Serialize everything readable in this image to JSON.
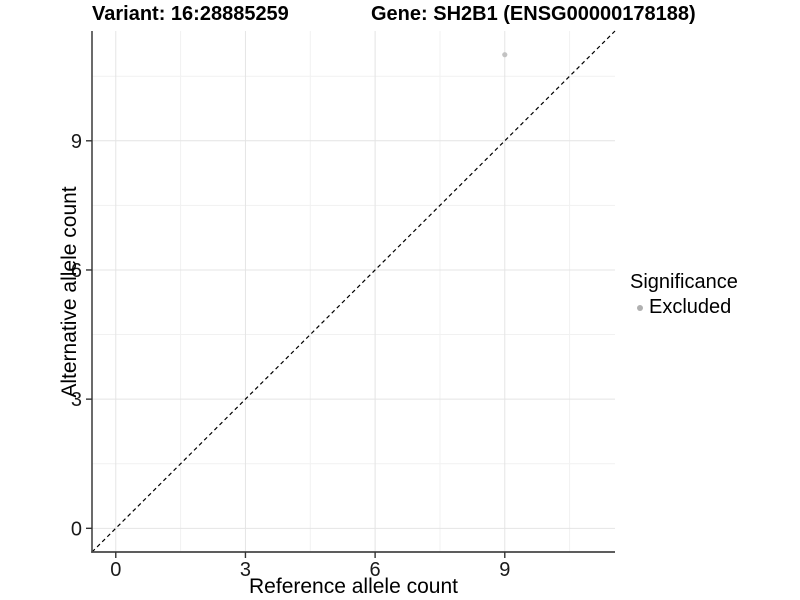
{
  "header": {
    "title_left": "Variant: 16:28885259",
    "title_right": "Gene: SH2B1 (ENSG00000178188)"
  },
  "chart_data": {
    "type": "scatter",
    "title_left": "Variant: 16:28885259",
    "title_right": "Gene: SH2B1 (ENSG00000178188)",
    "xlabel": "Reference allele count",
    "ylabel": "Alternative allele count",
    "xlim": [
      -0.55,
      11.55
    ],
    "ylim": [
      -0.55,
      11.55
    ],
    "xticks": [
      0,
      3,
      6,
      9
    ],
    "yticks": [
      0,
      3,
      6,
      9
    ],
    "x_minor_ticks": [
      1.5,
      4.5,
      7.5,
      10.5
    ],
    "y_minor_ticks": [
      1.5,
      4.5,
      7.5,
      10.5
    ],
    "grid": "major-and-minor",
    "points": [
      {
        "x": 9,
        "y": 11,
        "series": "Excluded"
      }
    ],
    "reference_line": {
      "type": "identity",
      "slope": 1,
      "intercept": 0,
      "style": "dashed"
    },
    "legend": {
      "title": "Significance",
      "position": "right",
      "items": [
        {
          "label": "Excluded",
          "color": "#b0b0b0"
        }
      ]
    }
  },
  "colors": {
    "point": "#bdbdbd",
    "grid_major": "#e4e4e4",
    "grid_minor": "#f1f1f1",
    "axis_line": "#464646",
    "tick_mark": "#333333",
    "tick_label": "#1a1a1a",
    "dashed_line": "#000000"
  }
}
